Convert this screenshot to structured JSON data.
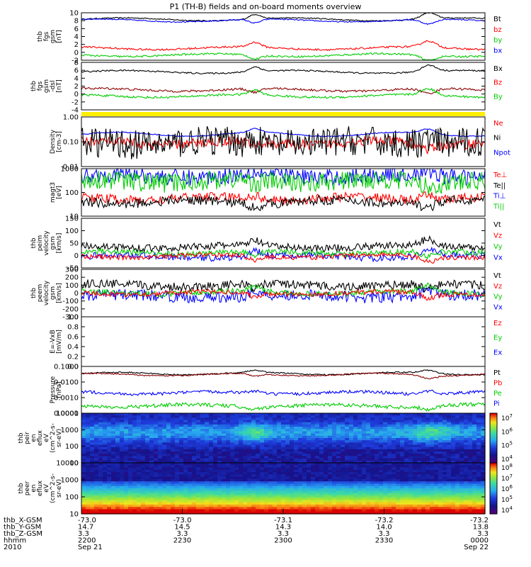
{
  "title": "P1 (TH-B) fields and on-board moments overview",
  "chart_data": [
    {
      "type": "line",
      "panel": "fgs_gsm",
      "ylabel": [
        "thb",
        "fgs",
        "gsm",
        "[nT]"
      ],
      "yticks": [
        "10",
        "8",
        "6",
        "4",
        "2",
        "0",
        "-2"
      ],
      "ylim": [
        -3,
        10
      ],
      "legend": [
        {
          "label": "Bt",
          "color": "#000000"
        },
        {
          "label": "bz",
          "color": "#ff0000"
        },
        {
          "label": "by",
          "color": "#00cc00"
        },
        {
          "label": "bx",
          "color": "#0000ff"
        }
      ],
      "series": [
        {
          "name": "Bt",
          "color": "#000000",
          "level": 8.2,
          "noise": 0.15
        },
        {
          "name": "bx",
          "color": "#0000ff",
          "level": 7.9,
          "noise": 0.15
        },
        {
          "name": "bz",
          "color": "#ff0000",
          "level": 0.3,
          "noise": 0.25
        },
        {
          "name": "by",
          "color": "#00cc00",
          "level": -1.6,
          "noise": 0.25
        }
      ]
    },
    {
      "type": "line",
      "panel": "fgs_gsm_dsl",
      "ylabel": [
        "thb",
        "fgs",
        "gsm",
        "-dsl",
        "[nT]"
      ],
      "yticks": [
        "8",
        "6",
        "4",
        "2",
        "0",
        "-2",
        "-4"
      ],
      "ylim": [
        -5,
        8
      ],
      "legend": [
        {
          "label": "Bx",
          "color": "#000000"
        },
        {
          "label": "Bz",
          "color": "#ff0000"
        },
        {
          "label": "By",
          "color": "#00cc00"
        }
      ],
      "series": [
        {
          "name": "Bx",
          "color": "#000000",
          "level": 5.4,
          "noise": 0.2
        },
        {
          "name": "Bz",
          "color": "#8b0000",
          "level": 0.5,
          "noise": 0.3
        },
        {
          "name": "By",
          "color": "#00cc00",
          "level": -1.2,
          "noise": 0.3
        }
      ]
    },
    {
      "type": "line",
      "panel": "density",
      "ylabel": [
        "Density",
        "[cm-3]"
      ],
      "yticks": [
        "1.00",
        "0.10",
        "0.01"
      ],
      "ylog": true,
      "ylim": [
        0.01,
        1.0
      ],
      "legend": [
        {
          "label": "Ne",
          "color": "#ff0000"
        },
        {
          "label": "Ni",
          "color": "#000000"
        },
        {
          "label": "Npot",
          "color": "#0000ff"
        }
      ],
      "series": [
        {
          "name": "Npot",
          "color": "#0000ff",
          "level": 0.2,
          "noise": 0.02
        },
        {
          "name": "Ne",
          "color": "#ff0000",
          "level": 0.09,
          "noise": 0.2
        },
        {
          "name": "Ni",
          "color": "#000000",
          "level": 0.09,
          "noise": 0.6
        }
      ]
    },
    {
      "type": "line",
      "panel": "temperature",
      "ylabel": [
        "magt3",
        "[eV]"
      ],
      "yticks": [
        "1000",
        "100",
        "10"
      ],
      "ylog": true,
      "ylim": [
        10,
        1000
      ],
      "legend": [
        {
          "label": "Te⊥",
          "color": "#ff0000"
        },
        {
          "label": "Te||",
          "color": "#000000"
        },
        {
          "label": "Ti⊥",
          "color": "#0000ff"
        },
        {
          "label": "Ti||",
          "color": "#00cc00"
        }
      ],
      "series": [
        {
          "name": "Ti⊥",
          "color": "#0000ff",
          "level": 500,
          "noise": 0.35
        },
        {
          "name": "Ti||",
          "color": "#00cc00",
          "level": 300,
          "noise": 0.4
        },
        {
          "name": "Te⊥",
          "color": "#ff0000",
          "level": 55,
          "noise": 0.2
        },
        {
          "name": "Te||",
          "color": "#000000",
          "level": 40,
          "noise": 0.2
        }
      ]
    },
    {
      "type": "line",
      "panel": "peim_velocity",
      "ylabel": [
        "thb",
        "peim",
        "velocity",
        "gsm",
        "[km/s]"
      ],
      "yticks": [
        "150",
        "100",
        "50",
        "0",
        "-50"
      ],
      "ylim": [
        -60,
        150
      ],
      "legend": [
        {
          "label": "Vt",
          "color": "#000000"
        },
        {
          "label": "Vz",
          "color": "#ff0000"
        },
        {
          "label": "Vy",
          "color": "#00cc00"
        },
        {
          "label": "Vx",
          "color": "#0000ff"
        }
      ],
      "series": [
        {
          "name": "Vx",
          "color": "#0000ff",
          "level": -12,
          "noise": 14
        },
        {
          "name": "Vy",
          "color": "#00cc00",
          "level": 5,
          "noise": 12
        },
        {
          "name": "Vt",
          "color": "#000000",
          "level": 30,
          "noise": 15
        },
        {
          "name": "Vz",
          "color": "#ff0000",
          "level": -10,
          "noise": 10
        }
      ]
    },
    {
      "type": "line",
      "panel": "peem_velocity",
      "ylabel": [
        "thb",
        "peem",
        "velocity",
        "gsm",
        "[km/s]"
      ],
      "yticks": [
        "300",
        "200",
        "100",
        "0",
        "-100",
        "-200",
        "-300"
      ],
      "ylim": [
        -300,
        300
      ],
      "legend": [
        {
          "label": "Vt",
          "color": "#000000"
        },
        {
          "label": "Vz",
          "color": "#ff0000"
        },
        {
          "label": "Vy",
          "color": "#00cc00"
        },
        {
          "label": "Vx",
          "color": "#0000ff"
        }
      ],
      "series": [
        {
          "name": "Vx",
          "color": "#0000ff",
          "level": -40,
          "noise": 70
        },
        {
          "name": "Vt",
          "color": "#000000",
          "level": 100,
          "noise": 55
        },
        {
          "name": "Vy",
          "color": "#00cc00",
          "level": 5,
          "noise": 35
        },
        {
          "name": "Vz",
          "color": "#ff0000",
          "level": 0,
          "noise": 30
        }
      ]
    },
    {
      "type": "line",
      "panel": "efield",
      "ylabel": [
        "E=-VxB",
        "[mV/m]"
      ],
      "yticks": [
        "1.0",
        "0.8",
        "0.6",
        "0.4",
        "0.2",
        "0.0"
      ],
      "ylim": [
        0,
        1
      ],
      "legend": [
        {
          "label": "Ez",
          "color": "#ff0000"
        },
        {
          "label": "Ey",
          "color": "#00cc00"
        },
        {
          "label": "Ex",
          "color": "#0000ff"
        }
      ],
      "series": []
    },
    {
      "type": "line",
      "panel": "pressure",
      "ylabel": [
        "Pressure",
        "[nPa]"
      ],
      "yticks": [
        "0.1000",
        "0.0100",
        "0.0010",
        "0.0001"
      ],
      "ylog": true,
      "ylim": [
        0.0001,
        0.1
      ],
      "legend": [
        {
          "label": "Pt",
          "color": "#000000"
        },
        {
          "label": "Pb",
          "color": "#ff0000"
        },
        {
          "label": "Pe",
          "color": "#00cc00"
        },
        {
          "label": "Pi",
          "color": "#0000ff"
        }
      ],
      "series": [
        {
          "name": "Pt",
          "color": "#000000",
          "level": 0.035,
          "noise": 0.04
        },
        {
          "name": "Pb",
          "color": "#8b0000",
          "level": 0.03,
          "noise": 0.04
        },
        {
          "name": "Pi",
          "color": "#0000ff",
          "level": 0.002,
          "noise": 0.1
        },
        {
          "name": "Pe",
          "color": "#00cc00",
          "level": 0.0003,
          "noise": 0.12
        }
      ]
    },
    {
      "type": "heatmap",
      "panel": "peir_spec",
      "ylabel": [
        "thb",
        "peir",
        "en",
        "eflux",
        "eV",
        "(cm^2-s-",
        "sr-eV)"
      ],
      "yticks": [
        "10000",
        "1000",
        "100",
        "10"
      ],
      "colorbar_ticks": [
        "10^7",
        "10^6",
        "10^5",
        "10^4"
      ]
    },
    {
      "type": "heatmap",
      "panel": "peer_spec",
      "ylabel": [
        "thb",
        "peer",
        "en",
        "eflux",
        "eV",
        "(cm^2-s-",
        "sr-eV)"
      ],
      "yticks": [
        "10000",
        "1000",
        "100",
        "10"
      ],
      "colorbar_ticks": [
        "10^8",
        "10^7",
        "10^6",
        "10^5",
        "10^4"
      ]
    }
  ],
  "xaxis": {
    "row_labels": [
      "thb_X-GSM",
      "thb_Y-GSM",
      "thb_Z-GSM",
      "hhmm",
      "2010"
    ],
    "columns": [
      {
        "x": [
          "-73.0",
          "14.7",
          "3.3",
          "2200",
          "Sep 21"
        ]
      },
      {
        "x": [
          "-73.0",
          "14.5",
          "3.3",
          "2230",
          ""
        ]
      },
      {
        "x": [
          "-73.1",
          "14.3",
          "3.3",
          "2300",
          ""
        ]
      },
      {
        "x": [
          "-73.2",
          "14.0",
          "3.3",
          "2330",
          ""
        ]
      },
      {
        "x": [
          "-73.2",
          "13.8",
          "3.3",
          "0000",
          "Sep 22"
        ]
      }
    ]
  }
}
